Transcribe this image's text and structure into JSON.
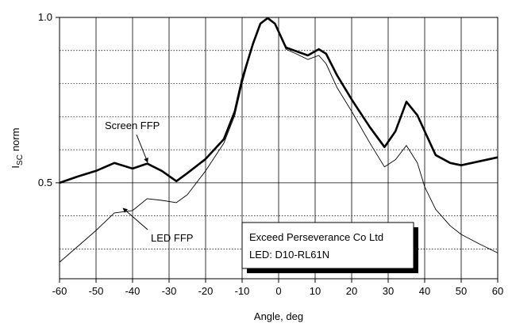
{
  "chart_data": {
    "type": "line",
    "xlabel": "Angle, deg",
    "ylabel": {
      "main": "I",
      "sub": "SC",
      "rest": "norm"
    },
    "x": [
      -60,
      -55,
      -50,
      -45,
      -40,
      -36,
      -32,
      -28,
      -25,
      -20,
      -15,
      -12,
      -10,
      -7,
      -5,
      -3,
      -1,
      2,
      5,
      8,
      11,
      13,
      16,
      20,
      25,
      29,
      32,
      35,
      38,
      40,
      43,
      47,
      50,
      55,
      60
    ],
    "series": [
      {
        "name": "Screen FFP",
        "color": "#000000",
        "width": 2.6,
        "values": [
          0.5,
          0.519,
          0.536,
          0.56,
          0.543,
          0.558,
          0.536,
          0.505,
          0.529,
          0.572,
          0.632,
          0.716,
          0.813,
          0.921,
          0.981,
          0.998,
          0.981,
          0.909,
          0.897,
          0.885,
          0.904,
          0.89,
          0.825,
          0.752,
          0.668,
          0.608,
          0.656,
          0.745,
          0.704,
          0.656,
          0.584,
          0.56,
          0.553,
          0.565,
          0.577
        ]
      },
      {
        "name": "LED FFP",
        "color": "#000000",
        "width": 0.9,
        "values": [
          0.26,
          0.308,
          0.356,
          0.409,
          0.416,
          0.452,
          0.447,
          0.44,
          0.464,
          0.536,
          0.62,
          0.704,
          0.8,
          0.921,
          0.981,
          1.0,
          0.981,
          0.904,
          0.889,
          0.873,
          0.885,
          0.86,
          0.788,
          0.716,
          0.62,
          0.548,
          0.57,
          0.613,
          0.56,
          0.488,
          0.42,
          0.37,
          0.344,
          0.315,
          0.288
        ]
      }
    ],
    "xlim": [
      -60,
      60
    ],
    "xticks": [
      -60,
      -50,
      -40,
      -30,
      -20,
      -10,
      0,
      10,
      20,
      30,
      40,
      50,
      60
    ],
    "ylim": [
      0.21,
      1.0
    ],
    "yticks": [
      {
        "value": 0.5,
        "label": "0.5"
      },
      {
        "value": 1,
        "label": "1.0"
      }
    ],
    "yminorticks": [
      0.3,
      0.4,
      0.6,
      0.7,
      0.8,
      0.9
    ],
    "grid": true,
    "annotations": [
      "Exceed Perseverance Co Ltd",
      "LED: D10-RL61N"
    ]
  }
}
